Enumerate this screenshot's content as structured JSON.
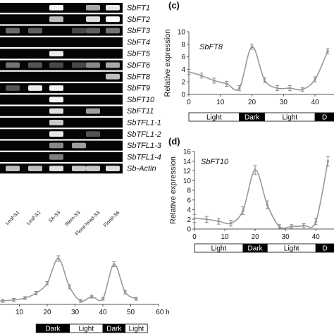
{
  "gel": {
    "genes": [
      "SbFT1",
      "SbFT2",
      "SbFT3",
      "SbFT4",
      "SbFT5",
      "SbFT6",
      "SbFT8",
      "SbFT9",
      "SbFT10",
      "SbFT11",
      "SbTFL1-1",
      "SbTFL1-2",
      "SbTFL1-3",
      "SbTFL1-4",
      "Sb-Actin"
    ],
    "lanes": [
      "Leaf-S1",
      "Leaf-S2",
      "SA-S3",
      "Stem-S3",
      "Floral head-S3",
      "Floret-S6"
    ]
  },
  "panel_c": {
    "letter": "(c)",
    "gene": "SbFT8",
    "ylabel": "Relative expression",
    "yticks": [
      "0",
      "2",
      "4",
      "6",
      "8",
      "10"
    ],
    "xticks": [
      "0",
      "10",
      "20",
      "30",
      "40"
    ],
    "bar": [
      "Light",
      "Dark",
      "Light",
      "D"
    ]
  },
  "panel_d": {
    "letter": "(d)",
    "gene": "SbFT10",
    "ylabel": "Relative expression",
    "yticks": [
      "0",
      "2",
      "4",
      "6",
      "8",
      "10",
      "12",
      "14",
      "16"
    ],
    "xticks": [
      "0",
      "10",
      "20",
      "30",
      "40"
    ],
    "bar": [
      "Light",
      "Dark",
      "Light",
      "D"
    ]
  },
  "panel_b": {
    "xticks": [
      "10",
      "20",
      "30",
      "40",
      "50",
      "60 h"
    ],
    "bar": [
      "Dark",
      "Light",
      "Dark",
      "Light"
    ]
  },
  "chart_data": [
    {
      "type": "line",
      "title": "SbFT8",
      "xlabel": "",
      "ylabel": "Relative expression",
      "xlim": [
        0,
        46
      ],
      "ylim": [
        0,
        10
      ],
      "x": [
        0,
        4,
        8,
        12,
        16,
        20,
        24,
        28,
        32,
        36,
        40,
        44
      ],
      "y": [
        3.6,
        3.0,
        2.2,
        1.7,
        1.0,
        7.6,
        2.3,
        1.0,
        1.0,
        0.8,
        2.4,
        6.9
      ],
      "error": [
        0.4,
        0.4,
        0.4,
        0.4,
        0.4,
        0.4,
        0.4,
        0.4,
        0.4,
        0.3,
        0.4,
        0.4
      ]
    },
    {
      "type": "line",
      "title": "SbFT10",
      "xlabel": "",
      "ylabel": "Relative expression",
      "xlim": [
        0,
        46
      ],
      "ylim": [
        0,
        16
      ],
      "x": [
        0,
        4,
        8,
        12,
        16,
        20,
        24,
        28,
        32,
        36,
        40,
        44
      ],
      "y": [
        2.2,
        2.0,
        1.6,
        1.2,
        3.8,
        12.2,
        5.0,
        0.5,
        0.5,
        0.7,
        1.5,
        14.0
      ],
      "error": [
        0.8,
        0.6,
        0.6,
        0.6,
        0.8,
        0.9,
        0.8,
        0.4,
        0.4,
        0.4,
        0.6,
        1.0
      ]
    },
    {
      "type": "line",
      "title": "",
      "xlabel": "",
      "ylabel": "",
      "xlim": [
        0,
        60
      ],
      "ylim": [
        0,
        14
      ],
      "x": [
        0,
        4,
        8,
        12,
        16,
        20,
        24,
        28,
        32,
        36,
        40,
        44,
        48,
        52
      ],
      "y": [
        1.0,
        1.0,
        1.3,
        1.8,
        3.2,
        6.0,
        13.0,
        5.0,
        1.0,
        2.2,
        1.6,
        11.4,
        3.5,
        1.6
      ],
      "error": [
        0.4,
        0.4,
        0.4,
        0.4,
        0.5,
        0.5,
        0.8,
        0.6,
        0.4,
        0.4,
        0.4,
        0.7,
        0.5,
        0.4
      ]
    }
  ]
}
